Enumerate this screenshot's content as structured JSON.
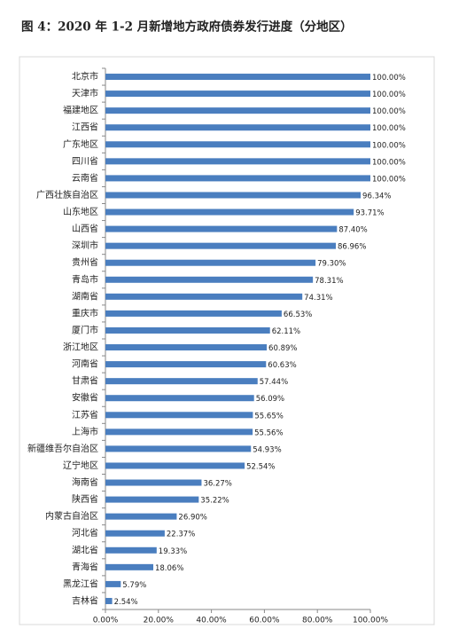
{
  "chart_data": {
    "type": "barh",
    "title": "图 4：2020 年 1-2 月新增地方政府债券发行进度（分地区）",
    "categories": [
      "北京市",
      "天津市",
      "福建地区",
      "江西省",
      "广东地区",
      "四川省",
      "云南省",
      "广西壮族自治区",
      "山东地区",
      "山西省",
      "深圳市",
      "贵州省",
      "青岛市",
      "湖南省",
      "重庆市",
      "厦门市",
      "浙江地区",
      "河南省",
      "甘肃省",
      "安徽省",
      "江苏省",
      "上海市",
      "新疆维吾尔自治区",
      "辽宁地区",
      "海南省",
      "陕西省",
      "内蒙古自治区",
      "河北省",
      "湖北省",
      "青海省",
      "黑龙江省",
      "吉林省"
    ],
    "values": [
      100,
      100,
      100,
      100,
      100,
      100,
      100,
      96.34,
      93.71,
      87.4,
      86.96,
      79.3,
      78.31,
      74.31,
      66.53,
      62.11,
      60.89,
      60.63,
      57.44,
      56.09,
      55.65,
      55.56,
      54.93,
      52.54,
      36.27,
      35.22,
      26.9,
      22.37,
      19.33,
      18.06,
      5.79,
      2.54
    ],
    "value_labels": [
      "100.00%",
      "100.00%",
      "100.00%",
      "100.00%",
      "100.00%",
      "100.00%",
      "100.00%",
      "96.34%",
      "93.71%",
      "87.40%",
      "86.96%",
      "79.30%",
      "78.31%",
      "74.31%",
      "66.53%",
      "62.11%",
      "60.89%",
      "60.63%",
      "57.44%",
      "56.09%",
      "55.65%",
      "55.56%",
      "54.93%",
      "52.54%",
      "36.27%",
      "35.22%",
      "26.90%",
      "22.37%",
      "19.33%",
      "18.06%",
      "5.79%",
      "2.54%"
    ],
    "color": "#4a7ebf",
    "xlim": [
      0,
      100
    ],
    "xticks": [
      {
        "value": 0,
        "label": "0.00%"
      },
      {
        "value": 20,
        "label": "20.00%"
      },
      {
        "value": 40,
        "label": "40.00%"
      },
      {
        "value": 60,
        "label": "60.00%"
      },
      {
        "value": 80,
        "label": "80.00%"
      },
      {
        "value": 100,
        "label": "100.00%"
      }
    ],
    "grid": false
  }
}
